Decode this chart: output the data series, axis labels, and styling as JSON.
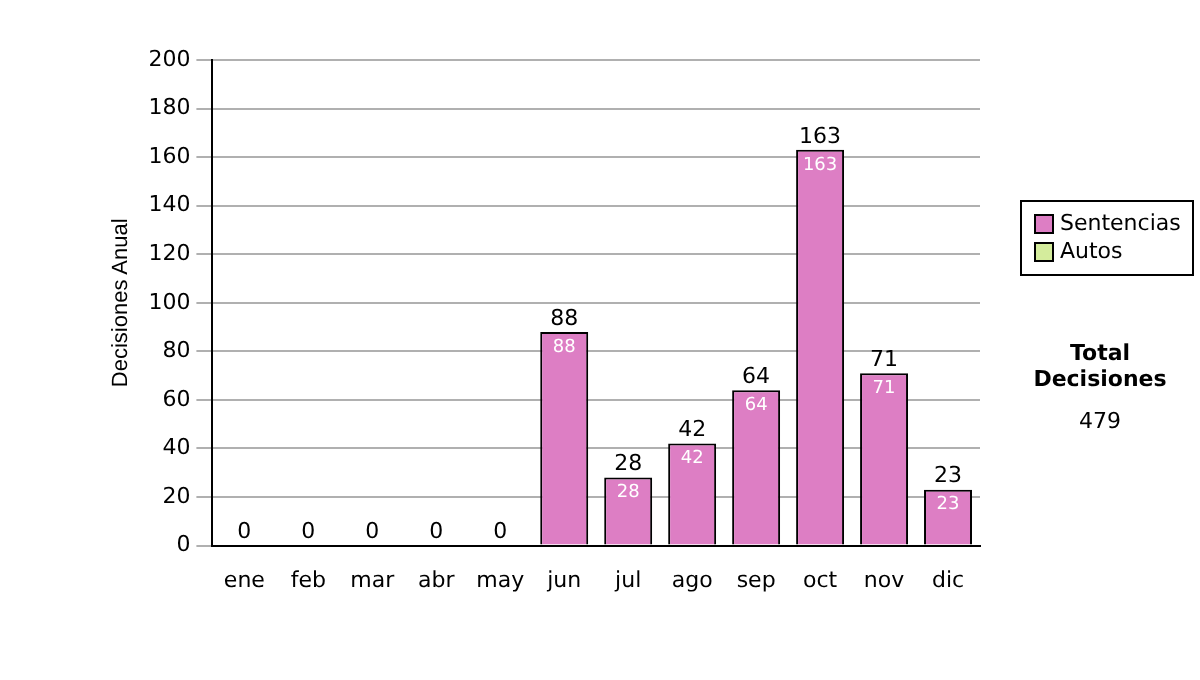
{
  "chart_data": {
    "type": "bar",
    "stacked": true,
    "ylabel": "Decisiones Anual",
    "categories": [
      "ene",
      "feb",
      "mar",
      "abr",
      "may",
      "jun",
      "jul",
      "ago",
      "sep",
      "oct",
      "nov",
      "dic"
    ],
    "series": [
      {
        "name": "Sentencias",
        "color": "#dd7ec4",
        "values": [
          0,
          0,
          0,
          0,
          0,
          88,
          28,
          42,
          64,
          163,
          71,
          23
        ],
        "value_labels": [
          null,
          null,
          null,
          null,
          null,
          "88",
          "28",
          "42",
          "64",
          "163",
          "71",
          "23"
        ]
      },
      {
        "name": "Autos",
        "color": "#d4ec9c",
        "values": [
          0,
          0,
          0,
          0,
          0,
          0,
          0,
          0,
          0,
          0,
          0,
          0
        ]
      }
    ],
    "totals": [
      "0",
      "0",
      "0",
      "0",
      "0",
      "88",
      "28",
      "42",
      "64",
      "163",
      "71",
      "23"
    ],
    "ylim": [
      0,
      200
    ],
    "yticks": [
      0,
      20,
      40,
      60,
      80,
      100,
      120,
      140,
      160,
      180,
      200
    ],
    "grid": "y",
    "legend": "right",
    "annotations": [
      "Total Decisiones",
      "479"
    ]
  }
}
